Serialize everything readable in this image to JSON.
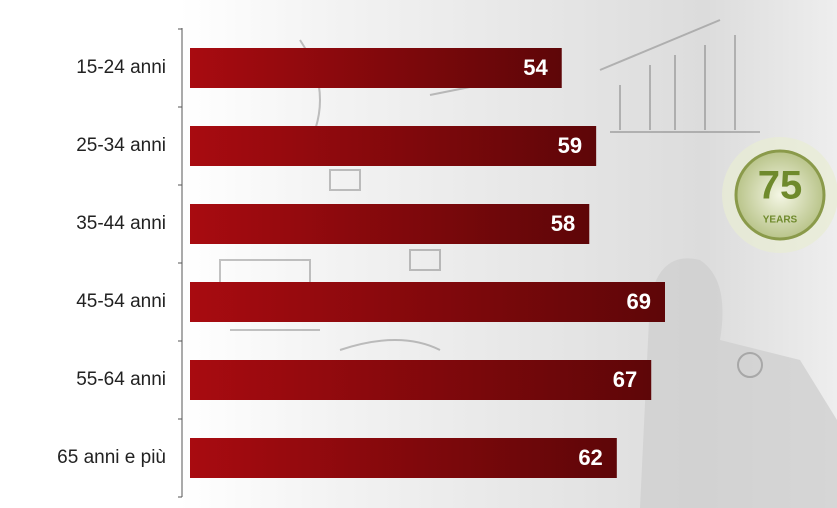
{
  "chart_data": {
    "type": "bar",
    "orientation": "horizontal",
    "categories": [
      "15-24 anni",
      "25-34 anni",
      "35-44 anni",
      "45-54 anni",
      "55-64 anni",
      "65 anni e più"
    ],
    "values": [
      54,
      59,
      58,
      69,
      67,
      62
    ],
    "color": "#9a0a0e"
  },
  "badge": {
    "number": "75",
    "text": "YEARS"
  }
}
